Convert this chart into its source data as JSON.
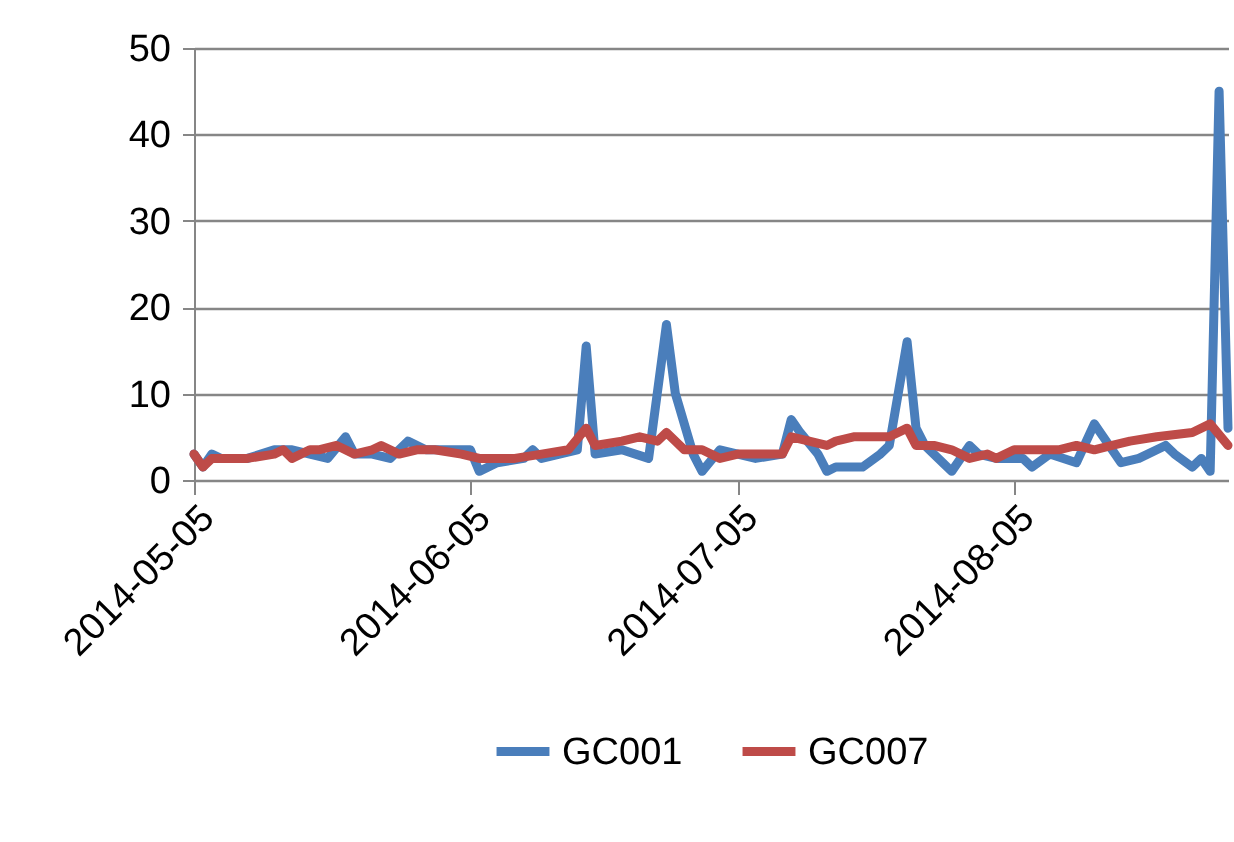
{
  "chart_data": {
    "type": "line",
    "x": [
      "2014-05-05",
      "2014-05-06",
      "2014-05-07",
      "2014-05-08",
      "2014-05-11",
      "2014-05-14",
      "2014-05-16",
      "2014-05-18",
      "2014-05-20",
      "2014-05-22",
      "2014-05-23",
      "2014-05-25",
      "2014-05-27",
      "2014-05-29",
      "2014-05-31",
      "2014-06-03",
      "2014-06-05",
      "2014-06-06",
      "2014-06-08",
      "2014-06-11",
      "2014-06-12",
      "2014-06-13",
      "2014-06-15",
      "2014-06-17",
      "2014-06-18",
      "2014-06-19",
      "2014-06-22",
      "2014-06-25",
      "2014-06-27",
      "2014-06-28",
      "2014-06-30",
      "2014-07-01",
      "2014-07-03",
      "2014-07-05",
      "2014-07-07",
      "2014-07-10",
      "2014-07-11",
      "2014-07-12",
      "2014-07-14",
      "2014-07-15",
      "2014-07-16",
      "2014-07-19",
      "2014-07-21",
      "2014-07-22",
      "2014-07-24",
      "2014-07-25",
      "2014-07-26",
      "2014-07-28",
      "2014-07-29",
      "2014-07-31",
      "2014-08-01",
      "2014-08-03",
      "2014-08-06",
      "2014-08-07",
      "2014-08-09",
      "2014-08-12",
      "2014-08-14",
      "2014-08-15",
      "2014-08-17",
      "2014-08-19",
      "2014-08-22",
      "2014-08-23",
      "2014-08-25",
      "2014-08-26",
      "2014-08-27",
      "2014-08-28",
      "2014-08-29"
    ],
    "series": [
      {
        "name": "GC001",
        "color": "#4a7ebb",
        "values": [
          3,
          1.5,
          3,
          2.5,
          2.5,
          3.5,
          3.5,
          3,
          2.5,
          5,
          3,
          3,
          2.5,
          4.5,
          3.5,
          3.5,
          3.5,
          1,
          2,
          2.5,
          3.5,
          2.5,
          3,
          3.5,
          15.5,
          3,
          3.5,
          2.5,
          18,
          10,
          3,
          1,
          3.5,
          3,
          2.5,
          3,
          7,
          5.5,
          3,
          1,
          1.5,
          1.5,
          3,
          4,
          16,
          6,
          4,
          2,
          1,
          4,
          3,
          2.5,
          2.5,
          1.5,
          3,
          2,
          6.5,
          5,
          2,
          2.5,
          4,
          3,
          1.5,
          2.5,
          1,
          45,
          6
        ]
      },
      {
        "name": "GC007",
        "color": "#be4b48",
        "x": [
          "2014-05-05",
          "2014-05-06",
          "2014-05-07",
          "2014-05-11",
          "2014-05-14",
          "2014-05-15",
          "2014-05-16",
          "2014-05-18",
          "2014-05-19",
          "2014-05-21",
          "2014-05-23",
          "2014-05-25",
          "2014-05-26",
          "2014-05-28",
          "2014-05-30",
          "2014-06-01",
          "2014-06-04",
          "2014-06-06",
          "2014-06-10",
          "2014-06-13",
          "2014-06-16",
          "2014-06-18",
          "2014-06-19",
          "2014-06-22",
          "2014-06-24",
          "2014-06-26",
          "2014-06-27",
          "2014-06-29",
          "2014-07-01",
          "2014-07-03",
          "2014-07-05",
          "2014-07-07",
          "2014-07-10",
          "2014-07-11",
          "2014-07-13",
          "2014-07-15",
          "2014-07-16",
          "2014-07-18",
          "2014-07-20",
          "2014-07-22",
          "2014-07-24",
          "2014-07-25",
          "2014-07-27",
          "2014-07-29",
          "2014-07-31",
          "2014-08-02",
          "2014-08-03",
          "2014-08-05",
          "2014-08-07",
          "2014-08-10",
          "2014-08-12",
          "2014-08-14",
          "2014-08-16",
          "2014-08-18",
          "2014-08-21",
          "2014-08-25",
          "2014-08-27",
          "2014-08-29"
        ],
        "values": [
          3,
          1.5,
          2.5,
          2.5,
          3,
          3.5,
          2.5,
          3.5,
          3.5,
          4,
          3,
          3.5,
          4,
          3,
          3.5,
          3.5,
          3,
          2.5,
          2.5,
          3,
          3.5,
          6,
          4,
          4.5,
          5,
          4.5,
          5.5,
          3.5,
          3.5,
          2.5,
          3,
          3,
          3,
          5,
          4.5,
          4,
          4.5,
          5,
          5,
          5,
          6,
          4,
          4,
          3.5,
          2.5,
          3,
          2.5,
          3.5,
          3.5,
          3.5,
          4,
          3.5,
          4,
          4.5,
          5,
          5.5,
          6.5,
          4
        ]
      }
    ],
    "xlim": [
      "2014-05-05",
      "2014-08-29"
    ],
    "xticks": [
      "2014-05-05",
      "2014-06-05",
      "2014-07-05",
      "2014-08-05"
    ],
    "ylim": [
      0,
      50
    ],
    "yticks": [
      0,
      10,
      20,
      30,
      40,
      50
    ],
    "grid": "y",
    "legend": "bottom",
    "marker": "none",
    "line_style": "solid"
  }
}
